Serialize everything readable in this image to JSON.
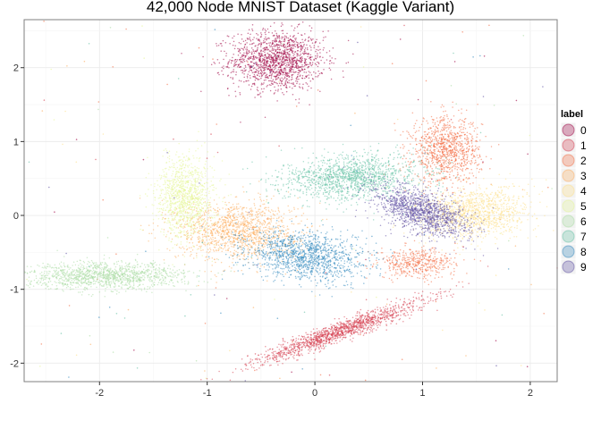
{
  "chart_data": {
    "type": "scatter",
    "title": "42,000 Node MNIST Dataset (Kaggle Variant)",
    "xlabel": "",
    "ylabel": "",
    "xlim": [
      -2.7,
      2.25
    ],
    "ylim": [
      -2.25,
      2.65
    ],
    "x_ticks": [
      -2,
      -1,
      0,
      1,
      2
    ],
    "x_tick_labels": [
      "-2",
      "-1",
      "0",
      "1",
      "2"
    ],
    "y_ticks": [
      -2,
      -1,
      0,
      1,
      2
    ],
    "y_tick_labels": [
      "-2",
      "-1",
      "0",
      "1",
      "2"
    ],
    "grid": true,
    "legend": {
      "title": "label",
      "placement": "right"
    },
    "series": [
      {
        "name": "0",
        "color": "#9E0142",
        "center": [
          -0.35,
          2.1
        ],
        "spread": [
          0.22,
          0.2
        ],
        "tilt": 0,
        "count": 1400
      },
      {
        "name": "1",
        "color": "#D53E4F",
        "center": [
          0.23,
          -1.57
        ],
        "spread": [
          0.45,
          0.06
        ],
        "tilt": 28,
        "count": 1400
      },
      {
        "name": "2",
        "color": "#F46D43",
        "center": [
          1.22,
          0.88
        ],
        "spread": [
          0.16,
          0.22
        ],
        "tilt": 0,
        "count": 1000
      },
      {
        "name": "2",
        "color": "#F46D43",
        "center": [
          0.95,
          -0.65
        ],
        "spread": [
          0.18,
          0.1
        ],
        "tilt": 0,
        "count": 450
      },
      {
        "name": "3",
        "color": "#FDAE61",
        "center": [
          -0.72,
          -0.2
        ],
        "spread": [
          0.28,
          0.2
        ],
        "tilt": 0,
        "count": 1300
      },
      {
        "name": "4",
        "color": "#FEE08B",
        "center": [
          1.48,
          0.03
        ],
        "spread": [
          0.26,
          0.17
        ],
        "tilt": 10,
        "count": 1200
      },
      {
        "name": "5",
        "color": "#E6F598",
        "center": [
          -1.2,
          0.25
        ],
        "spread": [
          0.13,
          0.28
        ],
        "tilt": 0,
        "count": 1100
      },
      {
        "name": "6",
        "color": "#ABDDA4",
        "center": [
          -1.95,
          -0.82
        ],
        "spread": [
          0.38,
          0.09
        ],
        "tilt": 0,
        "count": 1300
      },
      {
        "name": "7",
        "color": "#66C2A5",
        "center": [
          0.35,
          0.52
        ],
        "spread": [
          0.32,
          0.15
        ],
        "tilt": 6,
        "count": 1400
      },
      {
        "name": "8",
        "color": "#3288BD",
        "center": [
          -0.08,
          -0.55
        ],
        "spread": [
          0.28,
          0.16
        ],
        "tilt": -10,
        "count": 1300
      },
      {
        "name": "9",
        "color": "#5E4FA2",
        "center": [
          0.98,
          0.05
        ],
        "spread": [
          0.26,
          0.13
        ],
        "tilt": -32,
        "count": 1300
      }
    ],
    "legend_entries": [
      {
        "label": "0",
        "color": "#9E0142"
      },
      {
        "label": "1",
        "color": "#D53E4F"
      },
      {
        "label": "2",
        "color": "#F46D43"
      },
      {
        "label": "3",
        "color": "#FDAE61"
      },
      {
        "label": "4",
        "color": "#FEE08B"
      },
      {
        "label": "5",
        "color": "#E6F598"
      },
      {
        "label": "6",
        "color": "#ABDDA4"
      },
      {
        "label": "7",
        "color": "#66C2A5"
      },
      {
        "label": "8",
        "color": "#3288BD"
      },
      {
        "label": "9",
        "color": "#5E4FA2"
      }
    ]
  }
}
